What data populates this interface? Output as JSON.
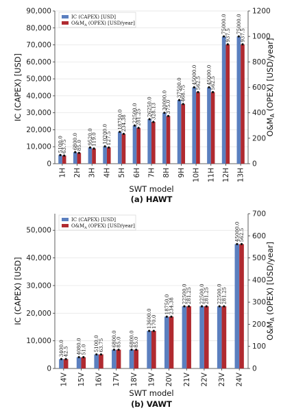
{
  "chart_data": [
    {
      "type": "bar",
      "caption": "(a) HAWT",
      "xlabel": "SWT model",
      "ylabel": "IC (CAPEX) [USD]",
      "y2label": "O&M_A (OPEX) [USD/year]",
      "ylim": [
        0,
        90000
      ],
      "y2lim": [
        0,
        1200
      ],
      "yticks": [
        "0",
        "10,000",
        "20,000",
        "30,000",
        "40,000",
        "50,000",
        "60,000",
        "70,000",
        "80,000",
        "90,000"
      ],
      "y2ticks": [
        "0",
        "200",
        "400",
        "600",
        "800",
        "1000",
        "1200"
      ],
      "categories": [
        "1H",
        "2H",
        "3H",
        "4H",
        "5H",
        "6H",
        "7H",
        "8H",
        "9H",
        "10H",
        "11H",
        "12H",
        "13H"
      ],
      "legend_placement": "top-left",
      "series": [
        {
          "name": "IC (CAPEX) [USD]",
          "axis": "left",
          "color": "#5b7fbf",
          "values": [
            5100.0,
            6800.0,
            9520.0,
            10200.0,
            18750.0,
            22500.0,
            26250.0,
            30000.0,
            37500.0,
            45000.0,
            45000.0,
            75000.0,
            75000.0
          ],
          "labels": [
            "5100.0",
            "6800.0",
            "9520.0",
            "10200.0",
            "18750.0",
            "22500.0",
            "26250.0",
            "30000.0",
            "37500.0",
            "45000.0",
            "45000.0",
            "75000.0",
            "75000.0"
          ]
        },
        {
          "name": "O&M_A (OPEX) [USD/year]",
          "axis": "right",
          "color": "#b02a30",
          "values": [
            63.75,
            85.0,
            119.0,
            127.5,
            234.38,
            281.25,
            328.13,
            375.0,
            468.75,
            562.5,
            562.5,
            937.5,
            937.5
          ],
          "labels": [
            "63.75",
            "85.0",
            "119.0",
            "127.5",
            "234.38",
            "281.25",
            "328.13",
            "375.0",
            "468.75",
            "562.5",
            "562.5",
            "937.5",
            "937.5"
          ]
        }
      ]
    },
    {
      "type": "bar",
      "caption": "(b) VAWT",
      "xlabel": "SWT model",
      "ylabel": "IC (CAPEX) [USD]",
      "y2label": "O&M_A (OPEX) [USD/year]",
      "ylim": [
        0,
        56000
      ],
      "y2lim": [
        0,
        700
      ],
      "yticks": [
        "0",
        "10,000",
        "20,000",
        "30,000",
        "40,000",
        "50,000"
      ],
      "y2ticks": [
        "0",
        "100",
        "200",
        "300",
        "400",
        "500",
        "600",
        "700"
      ],
      "categories": [
        "14V",
        "15V",
        "16V",
        "17V",
        "18V",
        "19V",
        "20V",
        "21V",
        "22V",
        "23V",
        "24V"
      ],
      "legend_placement": "top-left",
      "series": [
        {
          "name": "IC (CAPEX) [USD]",
          "axis": "left",
          "color": "#5b7fbf",
          "values": [
            3400.0,
            4080.0,
            5100.0,
            6800.0,
            6800.0,
            13600.0,
            18750.0,
            22500.0,
            22500.0,
            22500.0,
            45000.0
          ],
          "labels": [
            "3400.0",
            "4080.0",
            "5100.0",
            "6800.0",
            "6800.0",
            "13600.0",
            "18750.0",
            "22500.0",
            "22500.0",
            "22500.0",
            "45000.0"
          ]
        },
        {
          "name": "O&M_A (OPEX) [USD/year]",
          "axis": "right",
          "color": "#b02a30",
          "values": [
            42.5,
            51.0,
            63.75,
            85.0,
            85.0,
            170.0,
            234.38,
            281.25,
            281.25,
            281.25,
            562.5
          ],
          "labels": [
            "42.5",
            "51.0",
            "63.75",
            "85.0",
            "85.0",
            "170.0",
            "234.38",
            "281.25",
            "281.25",
            "281.25",
            "562.5"
          ]
        }
      ]
    }
  ]
}
